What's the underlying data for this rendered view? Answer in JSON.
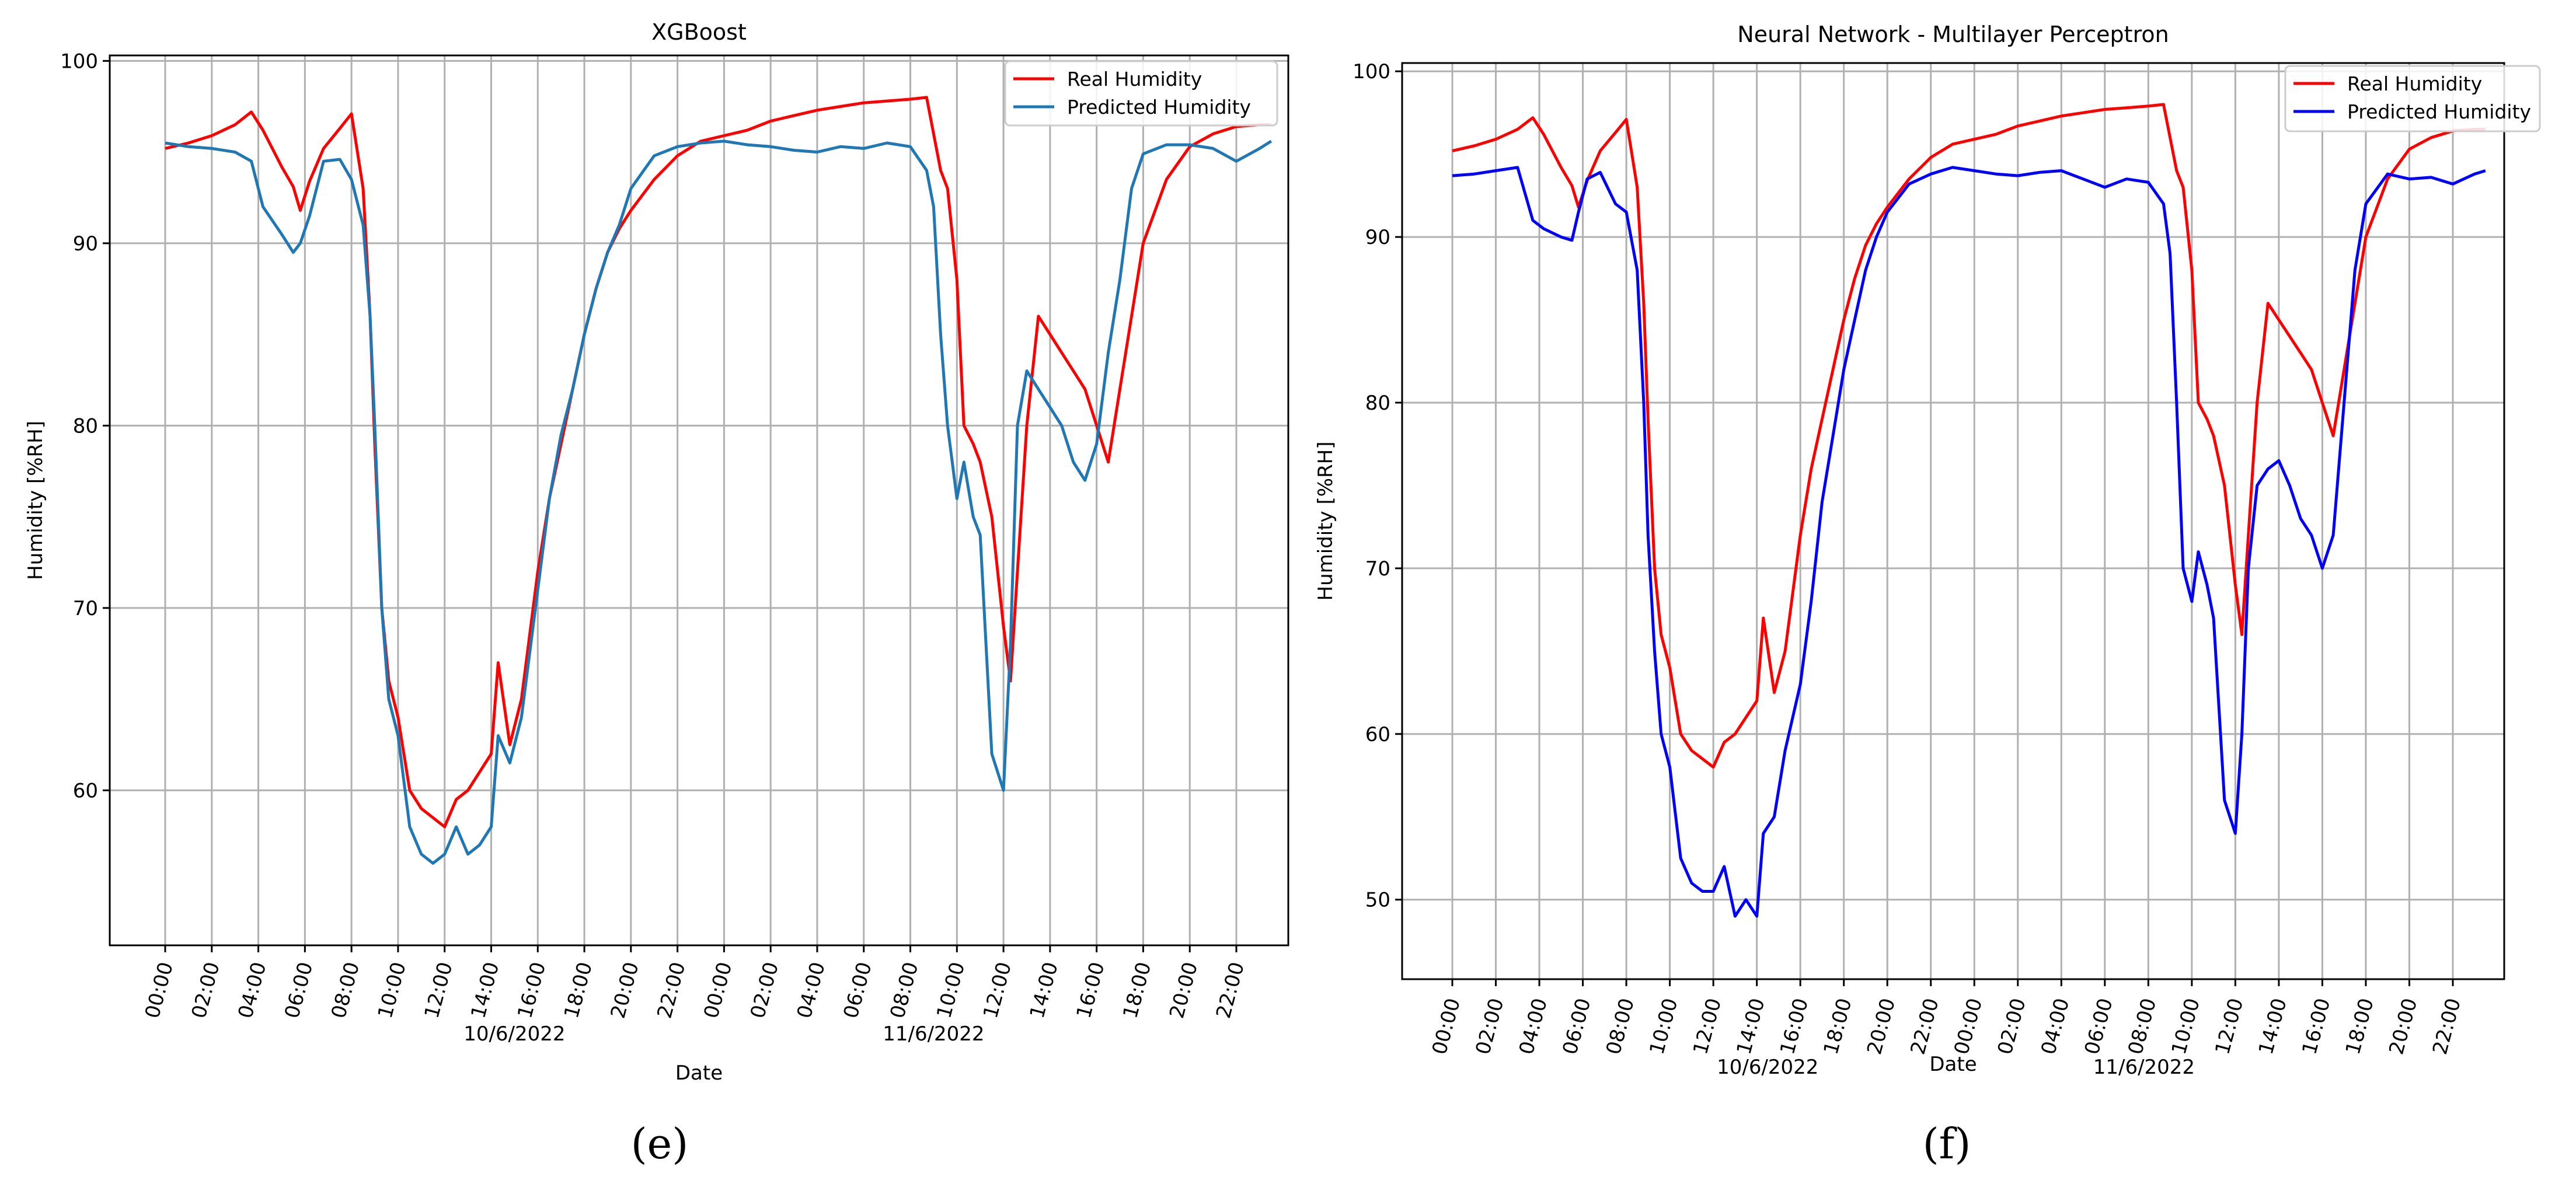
{
  "chart_data": [
    {
      "type": "line",
      "title": "XGBoost",
      "xlabel": "Date",
      "ylabel": "Humidity [%RH]",
      "ylim": [
        51.5,
        100.3
      ],
      "yticks": [
        60,
        70,
        80,
        90,
        100
      ],
      "xticks": [
        "00:00",
        "02:00",
        "04:00",
        "06:00",
        "08:00",
        "10:00",
        "12:00",
        "14:00",
        "16:00",
        "18:00",
        "20:00",
        "22:00",
        "00:00",
        "02:00",
        "04:00",
        "06:00",
        "08:00",
        "10:00",
        "12:00",
        "14:00",
        "16:00",
        "18:00",
        "20:00",
        "22:00"
      ],
      "date_labels": [
        {
          "text": "10/6/2022",
          "hour": 15
        },
        {
          "text": "11/6/2022",
          "hour": 33
        }
      ],
      "grid": true,
      "legend": "top-right",
      "caption": "(e)",
      "hours": [
        0,
        1,
        2,
        3,
        3.7,
        4.2,
        5,
        5.5,
        5.8,
        6.2,
        6.8,
        7.5,
        8,
        8.5,
        8.8,
        9,
        9.3,
        9.6,
        10,
        10.5,
        11,
        11.5,
        12,
        12.5,
        13,
        13.5,
        14,
        14.3,
        14.8,
        15.3,
        16,
        16.5,
        17,
        17.5,
        18,
        18.5,
        19,
        19.5,
        20,
        21,
        22,
        23,
        24,
        25,
        26,
        27,
        28,
        29,
        30,
        31,
        32,
        32.7,
        33,
        33.3,
        33.6,
        34,
        34.3,
        34.7,
        35,
        35.5,
        36,
        36.3,
        36.6,
        37,
        37.5,
        38,
        38.5,
        39,
        39.5,
        40,
        40.5,
        41,
        41.5,
        42,
        43,
        44,
        45,
        46,
        47,
        47.5
      ],
      "series": [
        {
          "name": "Real Humidity",
          "color": "#ff0000",
          "values": [
            95.2,
            95.5,
            95.9,
            96.5,
            97.2,
            96.2,
            94.2,
            93.1,
            91.8,
            93.4,
            95.2,
            96.3,
            97.1,
            93.0,
            86.0,
            79.0,
            70.0,
            66.0,
            64.0,
            60.0,
            59.0,
            58.5,
            58.0,
            59.5,
            60.0,
            61.0,
            62.0,
            67.0,
            62.5,
            65.0,
            72.0,
            76.0,
            79.0,
            82.0,
            85.0,
            87.5,
            89.5,
            90.8,
            91.8,
            93.5,
            94.8,
            95.6,
            95.9,
            96.2,
            96.7,
            97.0,
            97.3,
            97.5,
            97.7,
            97.8,
            97.9,
            98.0,
            96.0,
            94.0,
            93.0,
            88.0,
            80.0,
            79.0,
            78.0,
            75.0,
            69.0,
            66.0,
            72.0,
            80.0,
            86.0,
            85.0,
            84.0,
            83.0,
            82.0,
            80.0,
            78.0,
            82.0,
            86.0,
            90.0,
            93.5,
            95.3,
            96.0,
            96.4,
            96.5,
            96.5
          ]
        },
        {
          "name": "Predicted Humidity",
          "color": "#1f77b4",
          "values": [
            95.5,
            95.3,
            95.2,
            95.0,
            94.5,
            92.0,
            90.5,
            89.5,
            90.0,
            91.5,
            94.5,
            94.6,
            93.5,
            91.0,
            86.0,
            80.0,
            70.0,
            65.0,
            63.0,
            58.0,
            56.5,
            56.0,
            56.5,
            58.0,
            56.5,
            57.0,
            58.0,
            63.0,
            61.5,
            64.0,
            71.0,
            76.0,
            79.5,
            82.0,
            85.0,
            87.5,
            89.5,
            91.0,
            93.0,
            94.8,
            95.3,
            95.5,
            95.6,
            95.4,
            95.3,
            95.1,
            95.0,
            95.3,
            95.2,
            95.5,
            95.3,
            94.0,
            92.0,
            85.0,
            80.0,
            76.0,
            78.0,
            75.0,
            74.0,
            62.0,
            60.0,
            68.0,
            80.0,
            83.0,
            82.0,
            81.0,
            80.0,
            78.0,
            77.0,
            79.0,
            84.0,
            88.0,
            93.0,
            94.9,
            95.4,
            95.4,
            95.2,
            94.5,
            95.2,
            95.6
          ]
        }
      ]
    },
    {
      "type": "line",
      "title": "Neural Network - Multilayer Perceptron",
      "xlabel": "Date",
      "ylabel": "Humidity [%RH]",
      "ylim": [
        45.2,
        100.5
      ],
      "yticks": [
        50,
        60,
        70,
        80,
        90,
        100
      ],
      "xticks": [
        "00:00",
        "02:00",
        "04:00",
        "06:00",
        "08:00",
        "10:00",
        "12:00",
        "14:00",
        "16:00",
        "18:00",
        "20:00",
        "22:00",
        "00:00",
        "02:00",
        "04:00",
        "06:00",
        "08:00",
        "10:00",
        "12:00",
        "14:00",
        "16:00",
        "18:00",
        "20:00",
        "22:00"
      ],
      "date_labels": [
        {
          "text": "10/6/2022",
          "hour": 14.5
        },
        {
          "text": "11/6/2022",
          "hour": 31.8
        }
      ],
      "grid": true,
      "legend": "top-right",
      "caption": "(f)",
      "hours": [
        0,
        1,
        2,
        3,
        3.7,
        4.2,
        5,
        5.5,
        5.8,
        6.2,
        6.8,
        7.5,
        8,
        8.5,
        8.8,
        9,
        9.3,
        9.6,
        10,
        10.5,
        11,
        11.5,
        12,
        12.5,
        13,
        13.5,
        14,
        14.3,
        14.8,
        15.3,
        16,
        16.5,
        17,
        17.5,
        18,
        18.5,
        19,
        19.5,
        20,
        21,
        22,
        23,
        24,
        25,
        26,
        27,
        28,
        29,
        30,
        31,
        32,
        32.7,
        33,
        33.3,
        33.6,
        34,
        34.3,
        34.7,
        35,
        35.5,
        36,
        36.3,
        36.6,
        37,
        37.5,
        38,
        38.5,
        39,
        39.5,
        40,
        40.5,
        41,
        41.5,
        42,
        43,
        44,
        45,
        46,
        47,
        47.5
      ],
      "series": [
        {
          "name": "Real Humidity",
          "color": "#ff0000",
          "values": [
            95.2,
            95.5,
            95.9,
            96.5,
            97.2,
            96.2,
            94.2,
            93.1,
            91.8,
            93.4,
            95.2,
            96.3,
            97.1,
            93.0,
            86.0,
            79.0,
            70.0,
            66.0,
            64.0,
            60.0,
            59.0,
            58.5,
            58.0,
            59.5,
            60.0,
            61.0,
            62.0,
            67.0,
            62.5,
            65.0,
            72.0,
            76.0,
            79.0,
            82.0,
            85.0,
            87.5,
            89.5,
            90.8,
            91.8,
            93.5,
            94.8,
            95.6,
            95.9,
            96.2,
            96.7,
            97.0,
            97.3,
            97.5,
            97.7,
            97.8,
            97.9,
            98.0,
            96.0,
            94.0,
            93.0,
            88.0,
            80.0,
            79.0,
            78.0,
            75.0,
            69.0,
            66.0,
            72.0,
            80.0,
            86.0,
            85.0,
            84.0,
            83.0,
            82.0,
            80.0,
            78.0,
            82.0,
            86.0,
            90.0,
            93.5,
            95.3,
            96.0,
            96.4,
            96.5,
            96.5
          ]
        },
        {
          "name": "Predicted Humidity",
          "color": "#0000ff",
          "values": [
            93.7,
            93.8,
            94.0,
            94.2,
            91.0,
            90.5,
            90.0,
            89.8,
            91.5,
            93.5,
            93.9,
            92.0,
            91.5,
            88.0,
            80.0,
            72.0,
            65.0,
            60.0,
            58.0,
            52.5,
            51.0,
            50.5,
            50.5,
            52.0,
            49.0,
            50.0,
            49.0,
            54.0,
            55.0,
            59.0,
            63.0,
            68.0,
            74.0,
            78.0,
            82.0,
            85.0,
            88.0,
            90.0,
            91.5,
            93.2,
            93.8,
            94.2,
            94.0,
            93.8,
            93.7,
            93.9,
            94.0,
            93.5,
            93.0,
            93.5,
            93.3,
            92.0,
            89.0,
            80.0,
            70.0,
            68.0,
            71.0,
            69.0,
            67.0,
            56.0,
            54.0,
            60.0,
            70.0,
            75.0,
            76.0,
            76.5,
            75.0,
            73.0,
            72.0,
            70.0,
            72.0,
            80.0,
            88.0,
            92.0,
            93.8,
            93.5,
            93.6,
            93.2,
            93.8,
            94.0
          ]
        }
      ]
    }
  ]
}
